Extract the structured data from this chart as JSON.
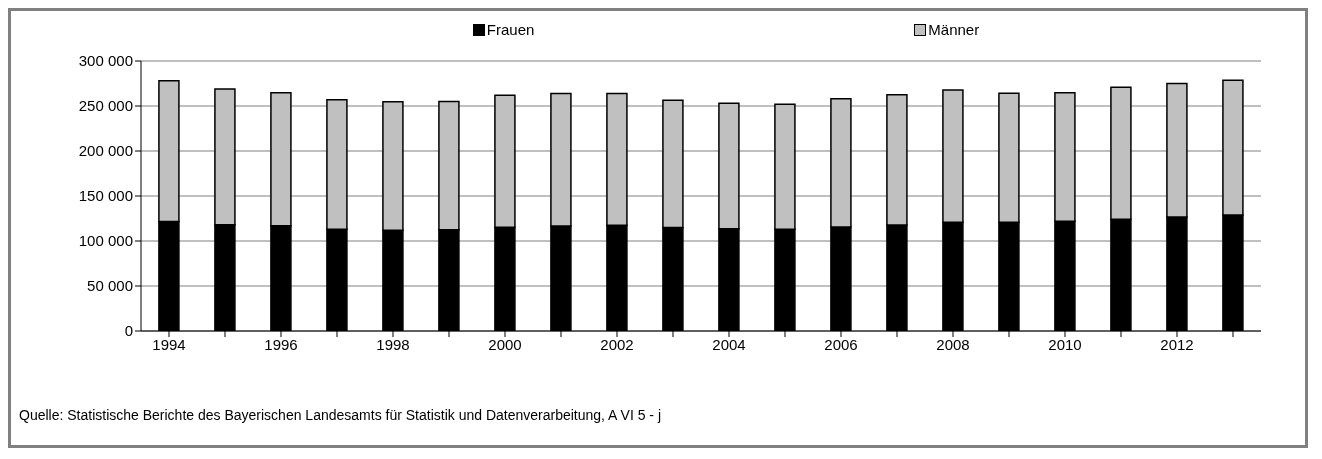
{
  "chart_data": {
    "type": "bar",
    "stacked": true,
    "categories": [
      "1994",
      null,
      "1996",
      null,
      "1998",
      null,
      "2000",
      null,
      "2002",
      null,
      "2004",
      null,
      "2006",
      null,
      "2008",
      null,
      "2010",
      null,
      "2012",
      null
    ],
    "series": [
      {
        "name": "Frauen",
        "color": "#000000",
        "values": [
          121600,
          118000,
          117000,
          113000,
          112000,
          112400,
          115400,
          116600,
          117400,
          115000,
          113500,
          113000,
          115600,
          117700,
          120800,
          120800,
          122000,
          124200,
          126800,
          128900
        ]
      },
      {
        "name": "Männer",
        "color": "#c0c0c0",
        "values": [
          156400,
          151000,
          147700,
          144000,
          142800,
          142600,
          146600,
          147400,
          146600,
          141400,
          139500,
          139000,
          142400,
          144900,
          146900,
          143500,
          142700,
          146500,
          148200,
          149600
        ]
      }
    ],
    "ylim": [
      0,
      300000
    ],
    "yticks": [
      {
        "value": 0,
        "label": "0"
      },
      {
        "value": 50000,
        "label": "50 000"
      },
      {
        "value": 100000,
        "label": "100 000"
      },
      {
        "value": 150000,
        "label": "150 000"
      },
      {
        "value": 200000,
        "label": "200 000"
      },
      {
        "value": 250000,
        "label": "250 000"
      },
      {
        "value": 300000,
        "label": "300 000"
      }
    ],
    "grid": "y",
    "legend": "top",
    "annotations": [
      "Quelle: Statistische Berichte des Bayerischen Landesamts für Statistik und Datenverarbeitung, A VI 5 - j"
    ]
  }
}
